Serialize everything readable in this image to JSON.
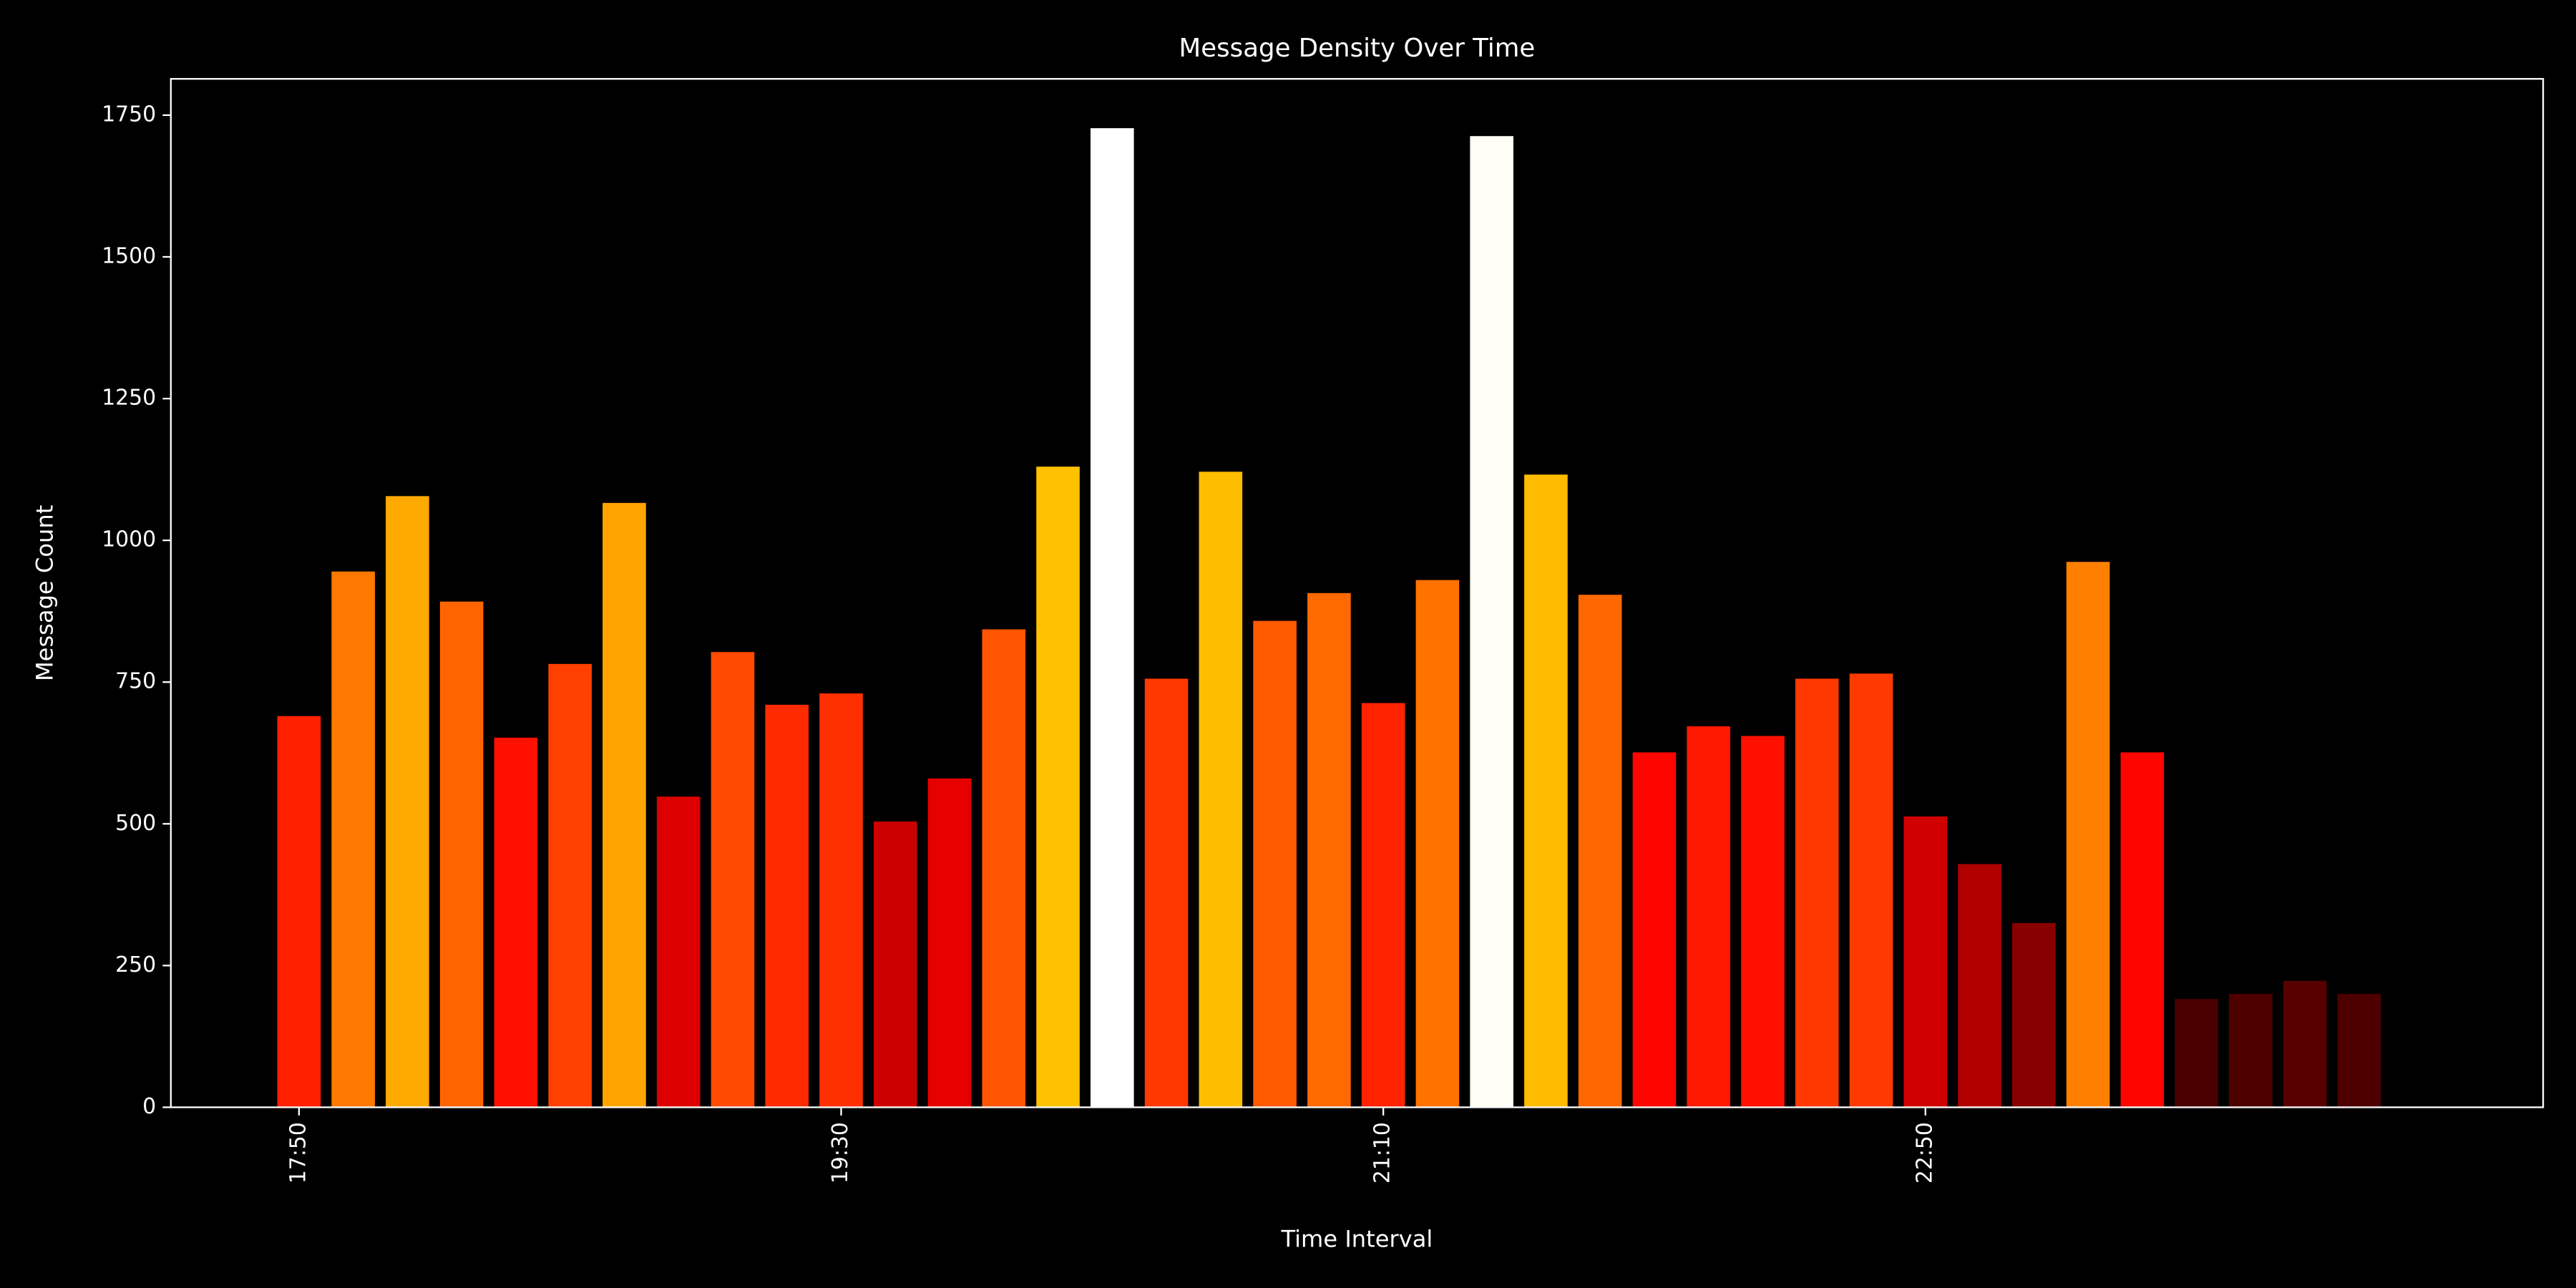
{
  "chart_data": {
    "type": "bar",
    "title": "Message Density Over Time",
    "x_label": "Time Interval",
    "y_label": "Message Count",
    "categories": [
      "17:50",
      null,
      null,
      null,
      null,
      null,
      null,
      null,
      null,
      null,
      "19:30",
      null,
      null,
      null,
      null,
      null,
      null,
      null,
      null,
      null,
      "21:10",
      null,
      null,
      null,
      null,
      null,
      null,
      null,
      null,
      null,
      "22:50",
      null,
      null,
      null,
      null,
      null,
      null,
      null,
      null
    ],
    "values": [
      690,
      945,
      1078,
      892,
      652,
      782,
      1066,
      548,
      803,
      710,
      730,
      504,
      580,
      843,
      1130,
      1727,
      756,
      1121,
      858,
      907,
      713,
      930,
      1713,
      1116,
      904,
      626,
      672,
      655,
      756,
      765,
      513,
      429,
      325,
      962,
      626,
      191,
      200,
      223,
      200
    ],
    "colors": [
      "#ff2000",
      "#ff7800",
      "#ffaa00",
      "#ff6400",
      "#ff1000",
      "#ff4000",
      "#ffa500",
      "#dd0000",
      "#ff4a00",
      "#ff2a00",
      "#ff3000",
      "#cc0000",
      "#e60000",
      "#ff5500",
      "#ffc000",
      "#ffffff",
      "#ff3800",
      "#ffbd00",
      "#ff5a00",
      "#ff6a00",
      "#ff2200",
      "#ff7200",
      "#fffff5",
      "#ffbb00",
      "#ff6800",
      "#ff0500",
      "#ff1800",
      "#ff1000",
      "#ff3800",
      "#ff3a00",
      "#d00000",
      "#b00000",
      "#880000",
      "#ff8000",
      "#ff0500",
      "#4a0000",
      "#4e0000",
      "#580000",
      "#4e0000"
    ],
    "ylim": [
      0,
      1814
    ],
    "yticks": [
      0,
      250,
      500,
      750,
      1000,
      1250,
      1500,
      1750
    ],
    "grid": false
  }
}
